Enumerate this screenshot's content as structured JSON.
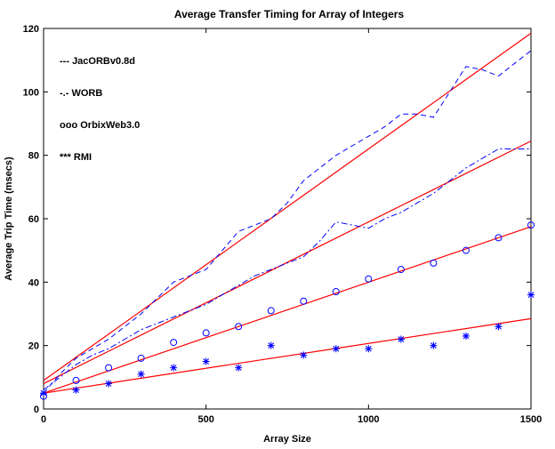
{
  "chart_data": {
    "type": "line",
    "title": "Average Transfer Timing for Array of Integers",
    "xlabel": "Array Size",
    "ylabel": "Average Trip Time (msecs)",
    "xlim": [
      0,
      1500
    ],
    "ylim": [
      0,
      120
    ],
    "x_ticks": [
      0,
      500,
      1000,
      1500
    ],
    "y_ticks": [
      0,
      20,
      40,
      60,
      80,
      100,
      120
    ],
    "grid": false,
    "legend_position": "top-left",
    "colors": {
      "data": "#0000ff",
      "fit": "#ff0000",
      "axes": "#000000"
    },
    "series": [
      {
        "name": "JacORBv0.8d",
        "style": "dashed",
        "x": [
          0,
          50,
          100,
          150,
          200,
          250,
          300,
          350,
          400,
          450,
          500,
          550,
          600,
          650,
          700,
          750,
          800,
          850,
          900,
          950,
          1000,
          1050,
          1100,
          1150,
          1200,
          1250,
          1300,
          1350,
          1400,
          1450,
          1500
        ],
        "y": [
          5,
          11,
          16,
          19,
          22,
          26,
          30,
          35,
          40,
          42,
          44,
          50,
          56,
          58,
          60,
          65,
          72,
          76,
          80,
          83,
          86,
          89,
          93,
          93,
          92,
          100,
          108,
          107,
          105,
          109,
          113
        ],
        "fit": [
          9,
          118.5
        ]
      },
      {
        "name": "WORB",
        "style": "dashdot",
        "x": [
          0,
          50,
          100,
          150,
          200,
          250,
          300,
          350,
          400,
          450,
          500,
          550,
          600,
          650,
          700,
          750,
          800,
          850,
          900,
          950,
          1000,
          1050,
          1100,
          1150,
          1200,
          1250,
          1300,
          1350,
          1400,
          1450,
          1500
        ],
        "y": [
          6,
          10,
          14,
          17,
          19,
          22,
          25,
          27,
          29,
          31,
          33,
          36,
          39,
          42,
          44,
          46,
          48,
          53,
          59,
          58,
          57,
          60,
          62,
          65,
          68,
          72,
          76,
          79,
          82,
          82,
          82
        ],
        "fit": [
          8,
          84.5
        ]
      },
      {
        "name": "OrbixWeb3.0",
        "style": "circle",
        "x": [
          0,
          100,
          200,
          300,
          400,
          500,
          600,
          700,
          800,
          900,
          1000,
          1100,
          1200,
          1300,
          1400,
          1500
        ],
        "y": [
          4,
          9,
          13,
          16,
          21,
          24,
          26,
          31,
          34,
          37,
          41,
          44,
          46,
          50,
          54,
          58
        ],
        "fit": [
          5,
          57.5
        ]
      },
      {
        "name": "RMI",
        "style": "star",
        "x": [
          0,
          100,
          200,
          300,
          400,
          500,
          600,
          700,
          800,
          900,
          1000,
          1100,
          1200,
          1300,
          1400,
          1500
        ],
        "y": [
          5,
          6,
          8,
          11,
          13,
          15,
          13,
          20,
          17,
          19,
          19,
          22,
          20,
          23,
          26,
          36
        ],
        "fit": [
          5,
          28.5
        ]
      }
    ],
    "legend": [
      {
        "symbol": "---",
        "label": "JacORBv0.8d"
      },
      {
        "symbol": "-.-",
        "label": "WORB"
      },
      {
        "symbol": "ooo",
        "label": "OrbixWeb3.0"
      },
      {
        "symbol": "***",
        "label": "RMI"
      }
    ]
  }
}
